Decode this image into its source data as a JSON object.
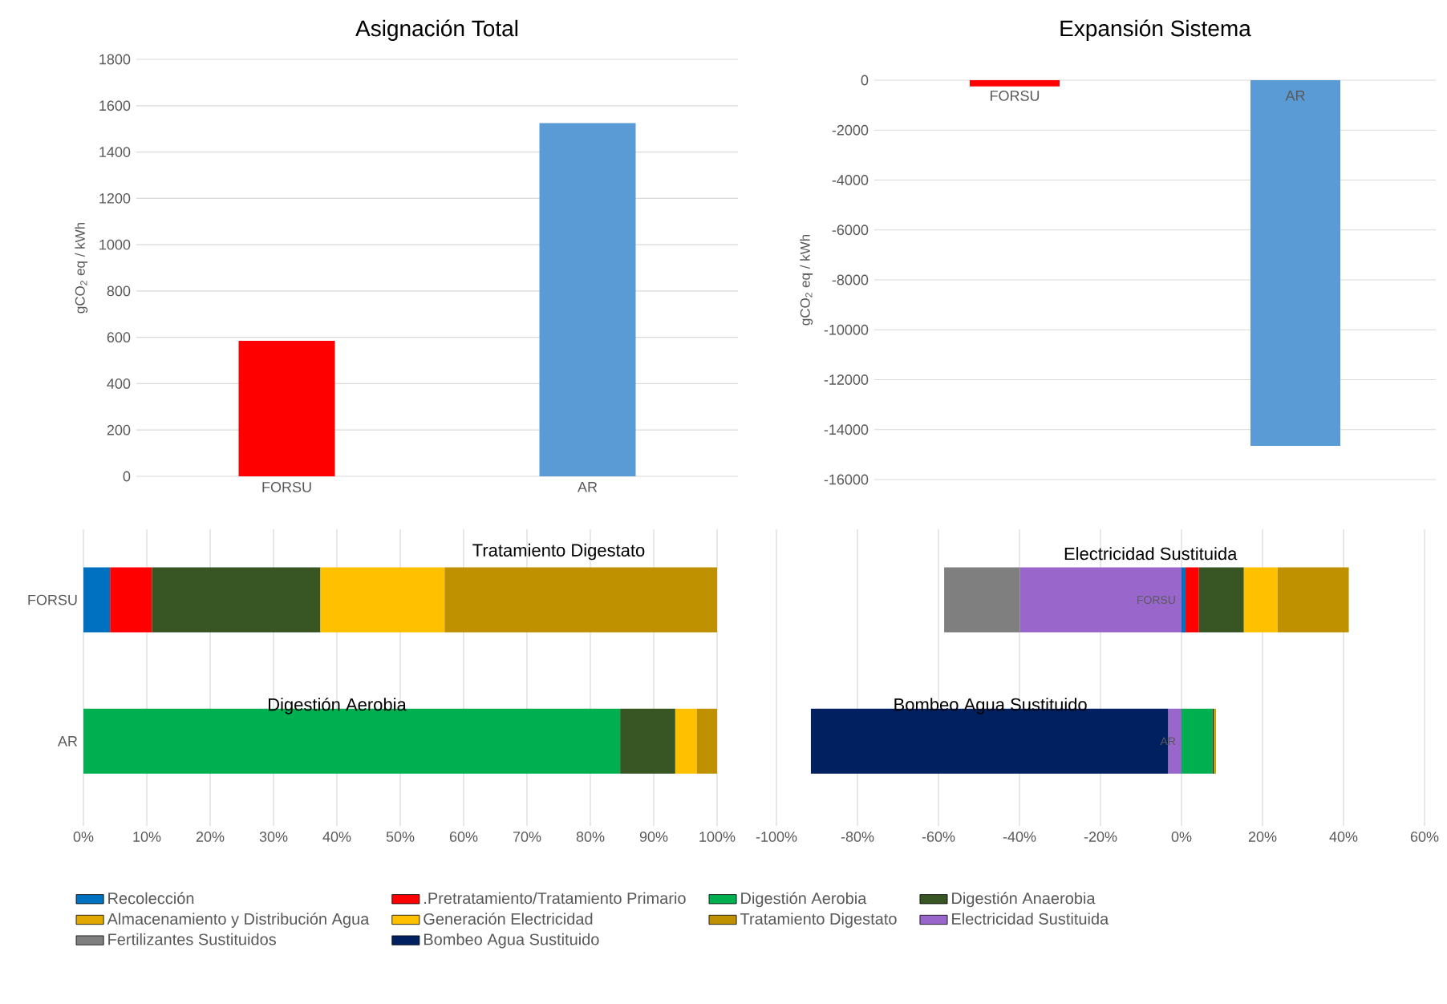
{
  "chart_data": [
    {
      "type": "bar",
      "title": "Asignación Total",
      "ylabel": "gCO$_{2}$ eq / kWh",
      "categories": [
        "FORSU",
        "AR"
      ],
      "values": [
        585,
        1525
      ],
      "colors": [
        "#ff0000",
        "#5b9bd5"
      ],
      "ylim": [
        0,
        1800
      ],
      "yticks": [
        0,
        200,
        400,
        600,
        800,
        1000,
        1200,
        1400,
        1600,
        1800
      ],
      "grid": "y"
    },
    {
      "type": "bar",
      "title": "Expansión Sistema",
      "ylabel": "gCO$_{2}$ eq / kWh",
      "categories": [
        "FORSU",
        "AR"
      ],
      "values": [
        -250,
        -14650
      ],
      "colors": [
        "#ff0000",
        "#5b9bd5"
      ],
      "ylim": [
        -16000,
        0
      ],
      "yticks": [
        0,
        -2000,
        -4000,
        -6000,
        -8000,
        -10000,
        -12000,
        -14000,
        -16000
      ],
      "grid": "y"
    },
    {
      "type": "bar",
      "orientation": "horizontal",
      "stacked": true,
      "categories": [
        "FORSU",
        "AR"
      ],
      "xlim": [
        0,
        100
      ],
      "xticks": [
        {
          "value": 0,
          "label": "0%"
        },
        {
          "value": 10,
          "label": "10%"
        },
        {
          "value": 20,
          "label": "20%"
        },
        {
          "value": 30,
          "label": "30%"
        },
        {
          "value": 40,
          "label": "40%"
        },
        {
          "value": 50,
          "label": "50%"
        },
        {
          "value": 60,
          "label": "60%"
        },
        {
          "value": 70,
          "label": "70%"
        },
        {
          "value": 80,
          "label": "80%"
        },
        {
          "value": 90,
          "label": "90%"
        },
        {
          "value": 100,
          "label": "100%"
        }
      ],
      "grid": "x",
      "legend": "bottom",
      "annotations": [
        "Tratamiento Digestato",
        "Digestión Aerobia"
      ],
      "series": [
        {
          "name": "Recolección",
          "color": "#0070c0",
          "values": [
            4.2,
            null
          ]
        },
        {
          "name": ".Pretratamiento/Tratamiento Primario",
          "color": "#ff0000",
          "values": [
            6.6,
            null
          ]
        },
        {
          "name": "Digestión Aerobia",
          "color": "#00b050",
          "values": [
            null,
            84.7
          ]
        },
        {
          "name": "Digestión Anaerobia",
          "color": "#375623",
          "values": [
            26.6,
            8.7
          ]
        },
        {
          "name": "Almacenamiento y Distribución Agua",
          "color": "#e0a800",
          "values": [
            null,
            null
          ]
        },
        {
          "name": "Generación Electricidad",
          "color": "#ffc000",
          "values": [
            19.6,
            3.4
          ]
        },
        {
          "name": "Tratamiento Digestato",
          "color": "#bf9000",
          "values": [
            43.0,
            3.2
          ]
        },
        {
          "name": "Electricidad Sustituida",
          "color": "#9966cc",
          "values": [
            null,
            null
          ]
        },
        {
          "name": "Fertilizantes Sustituidos",
          "color": "#7f7f7f",
          "values": [
            null,
            null
          ]
        },
        {
          "name": "Bombeo Agua Sustituido",
          "color": "#002060",
          "values": [
            null,
            null
          ]
        }
      ]
    },
    {
      "type": "bar",
      "orientation": "horizontal",
      "stacked": true,
      "categories": [
        "FORSU",
        "AR"
      ],
      "xlim": [
        -100,
        60
      ],
      "xticks": [
        {
          "value": -100,
          "label": "-100%"
        },
        {
          "value": -80,
          "label": "-80%"
        },
        {
          "value": -60,
          "label": "-60%"
        },
        {
          "value": -40,
          "label": "-40%"
        },
        {
          "value": -20,
          "label": "-20%"
        },
        {
          "value": 0,
          "label": "0%"
        },
        {
          "value": 20,
          "label": "20%"
        },
        {
          "value": 40,
          "label": "40%"
        },
        {
          "value": 60,
          "label": "60%"
        }
      ],
      "grid": "x",
      "annotations": [
        "Electricidad Sustituida",
        "Bombeo Agua Sustituido"
      ],
      "series": [
        {
          "color": "#0070c0",
          "values": [
            1.0,
            null
          ]
        },
        {
          "color": "#ff0000",
          "values": [
            3.3,
            null
          ]
        },
        {
          "color": "#00b050",
          "values": [
            null,
            7.6
          ]
        },
        {
          "color": "#375623",
          "values": [
            11.1,
            0.5
          ]
        },
        {
          "color": "#e0a800",
          "values": [
            null,
            null
          ]
        },
        {
          "color": "#ffc000",
          "values": [
            8.3,
            0.2
          ]
        },
        {
          "color": "#bf9000",
          "values": [
            17.6,
            0.2
          ]
        },
        {
          "color": "#9966cc",
          "values": [
            -39.9,
            -3.3
          ]
        },
        {
          "color": "#7f7f7f",
          "values": [
            -18.7,
            null
          ]
        },
        {
          "color": "#002060",
          "values": [
            null,
            -88.2
          ]
        }
      ]
    }
  ]
}
